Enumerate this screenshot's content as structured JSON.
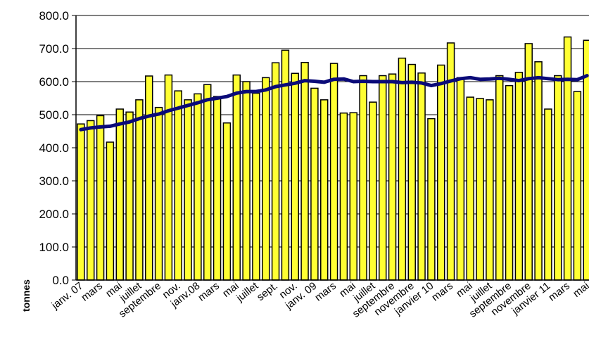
{
  "chart_data": {
    "type": "bar",
    "ylabel": "tonnes",
    "ylim": [
      0,
      800
    ],
    "yticks": [
      "0.0",
      "100.0",
      "200.0",
      "300.0",
      "400.0",
      "500.0",
      "600.0",
      "700.0",
      "800.0"
    ],
    "grid": "horizontal",
    "bar_color": "#ffff33",
    "bar_edge_color": "#000000",
    "line_color": "#0a0a78",
    "x_tick_labels": [
      {
        "index": 0,
        "label": "janv. 07"
      },
      {
        "index": 2,
        "label": "mars"
      },
      {
        "index": 4,
        "label": "mai"
      },
      {
        "index": 6,
        "label": "juillet"
      },
      {
        "index": 8,
        "label": "septembre"
      },
      {
        "index": 10,
        "label": "nov."
      },
      {
        "index": 12,
        "label": "janv.08"
      },
      {
        "index": 14,
        "label": "mars"
      },
      {
        "index": 16,
        "label": "mai"
      },
      {
        "index": 18,
        "label": "juillet"
      },
      {
        "index": 20,
        "label": "sept."
      },
      {
        "index": 22,
        "label": "nov."
      },
      {
        "index": 24,
        "label": "janv. 09"
      },
      {
        "index": 26,
        "label": "mars"
      },
      {
        "index": 28,
        "label": "mai"
      },
      {
        "index": 30,
        "label": "juillet"
      },
      {
        "index": 32,
        "label": "septembre"
      },
      {
        "index": 34,
        "label": "novembre"
      },
      {
        "index": 36,
        "label": "janvier 10"
      },
      {
        "index": 38,
        "label": "mars"
      },
      {
        "index": 40,
        "label": "mai"
      },
      {
        "index": 42,
        "label": "juillet"
      },
      {
        "index": 44,
        "label": "septembre"
      },
      {
        "index": 46,
        "label": "novembre"
      },
      {
        "index": 48,
        "label": "janvier 11"
      },
      {
        "index": 50,
        "label": "mars"
      },
      {
        "index": 52,
        "label": "mai"
      }
    ],
    "values": [
      472,
      482,
      497,
      417,
      517,
      508,
      545,
      617,
      522,
      620,
      572,
      545,
      563,
      591,
      555,
      475,
      620,
      600,
      565,
      612,
      657,
      695,
      625,
      658,
      580,
      545,
      655,
      505,
      506,
      618,
      538,
      618,
      623,
      671,
      652,
      626,
      488,
      650,
      717,
      612,
      553,
      549,
      545,
      618,
      588,
      628,
      715,
      660,
      517,
      618,
      735,
      570,
      725
    ],
    "trend": [
      455,
      460,
      463,
      465,
      472,
      478,
      488,
      496,
      502,
      512,
      520,
      528,
      536,
      545,
      550,
      555,
      565,
      570,
      570,
      575,
      585,
      590,
      595,
      603,
      601,
      598,
      607,
      608,
      600,
      601,
      600,
      600,
      600,
      597,
      598,
      596,
      588,
      594,
      602,
      609,
      612,
      607,
      608,
      610,
      607,
      603,
      609,
      612,
      609,
      606,
      607,
      606,
      618
    ]
  }
}
